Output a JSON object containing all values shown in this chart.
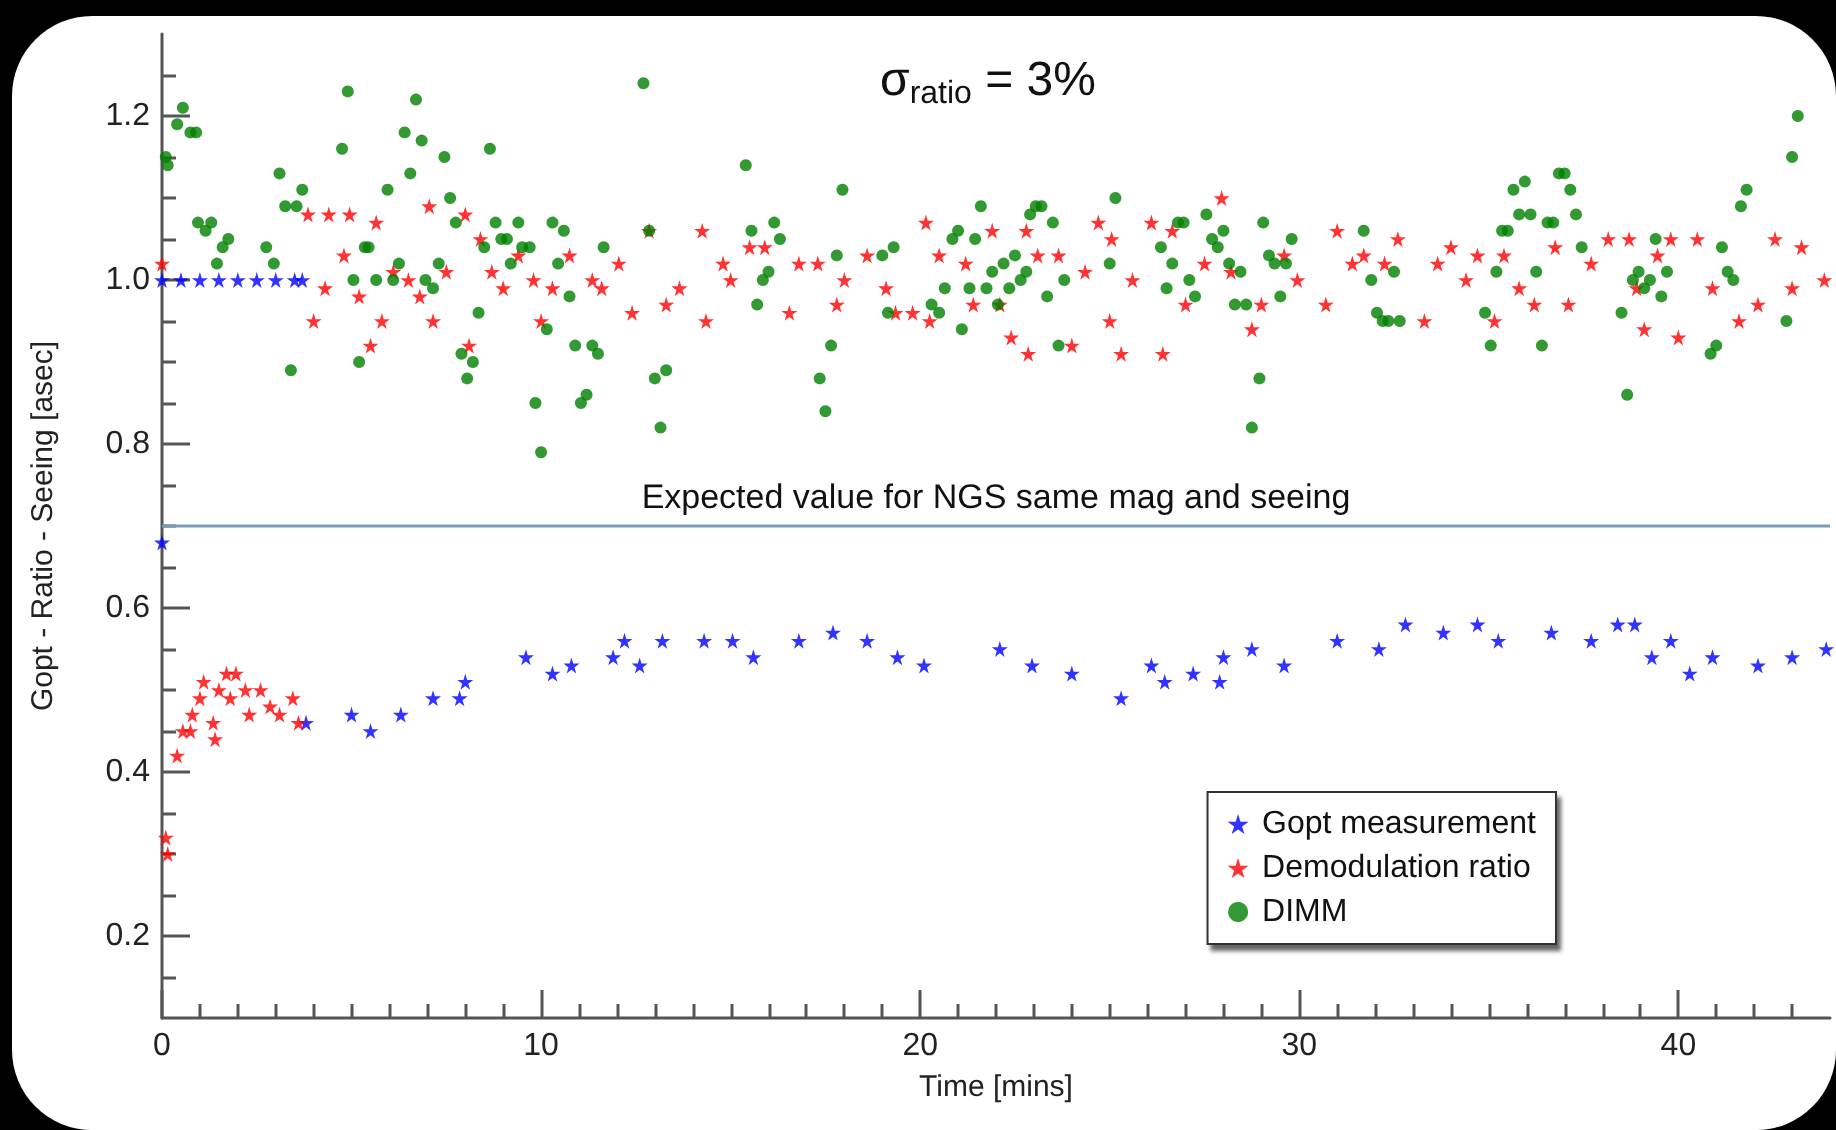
{
  "chart_data": {
    "type": "scatter",
    "xlabel": "Time [mins]",
    "ylabel": "Gopt - Ratio - Seeing [asec]",
    "annotations": [
      "σ$_{ratio}$ = 3%"
    ],
    "xlim": [
      0,
      44
    ],
    "xticks": [
      0,
      {
        "value": 1,
        "label": null
      },
      {
        "value": 2,
        "label": null
      },
      {
        "value": 3,
        "label": null
      },
      {
        "value": 4,
        "label": null
      },
      {
        "value": 5,
        "label": null
      },
      {
        "value": 6,
        "label": null
      },
      {
        "value": 7,
        "label": null
      },
      {
        "value": 8,
        "label": null
      },
      {
        "value": 9,
        "label": null
      },
      10,
      {
        "value": 11,
        "label": null
      },
      {
        "value": 12,
        "label": null
      },
      {
        "value": 13,
        "label": null
      },
      {
        "value": 14,
        "label": null
      },
      {
        "value": 15,
        "label": null
      },
      {
        "value": 16,
        "label": null
      },
      {
        "value": 17,
        "label": null
      },
      {
        "value": 18,
        "label": null
      },
      {
        "value": 19,
        "label": null
      },
      20,
      {
        "value": 21,
        "label": null
      },
      {
        "value": 22,
        "label": null
      },
      {
        "value": 23,
        "label": null
      },
      {
        "value": 24,
        "label": null
      },
      {
        "value": 25,
        "label": null
      },
      {
        "value": 26,
        "label": null
      },
      {
        "value": 27,
        "label": null
      },
      {
        "value": 28,
        "label": null
      },
      {
        "value": 29,
        "label": null
      },
      30,
      {
        "value": 31,
        "label": null
      },
      {
        "value": 32,
        "label": null
      },
      {
        "value": 33,
        "label": null
      },
      {
        "value": 34,
        "label": null
      },
      {
        "value": 35,
        "label": null
      },
      {
        "value": 36,
        "label": null
      },
      {
        "value": 37,
        "label": null
      },
      {
        "value": 38,
        "label": null
      },
      {
        "value": 39,
        "label": null
      },
      40,
      {
        "value": 41,
        "label": null
      },
      {
        "value": 42,
        "label": null
      },
      {
        "value": 43,
        "label": null
      }
    ],
    "ylim": [
      0.1,
      1.3
    ],
    "yticks": [
      {
        "value": 0.15,
        "label": null
      },
      {
        "value": 0.2,
        "label": "0.2"
      },
      {
        "value": 0.25,
        "label": null
      },
      {
        "value": 0.3,
        "label": null
      },
      {
        "value": 0.35,
        "label": null
      },
      {
        "value": 0.4,
        "label": "0.4"
      },
      {
        "value": 0.45,
        "label": null
      },
      {
        "value": 0.5,
        "label": null
      },
      {
        "value": 0.55,
        "label": null
      },
      {
        "value": 0.6,
        "label": "0.6"
      },
      {
        "value": 0.65,
        "label": null
      },
      {
        "value": 0.7,
        "label": null
      },
      {
        "value": 0.75,
        "label": null
      },
      {
        "value": 0.8,
        "label": "0.8"
      },
      {
        "value": 0.85,
        "label": null
      },
      {
        "value": 0.9,
        "label": null
      },
      {
        "value": 0.95,
        "label": null
      },
      {
        "value": 1.0,
        "label": "1.0"
      },
      {
        "value": 1.05,
        "label": null
      },
      {
        "value": 1.1,
        "label": null
      },
      {
        "value": 1.15,
        "label": null
      },
      {
        "value": 1.2,
        "label": "1.2"
      },
      {
        "value": 1.25,
        "label": null
      }
    ],
    "grid": false,
    "legend": "bottom right",
    "ref_lines": [
      {
        "axis": "y",
        "value": 0.7,
        "label": "Expected value for NGS same mag and seeing",
        "color": "#7a9cb8"
      }
    ],
    "series": [
      {
        "name": "Gopt measurement",
        "color": "#0000ff",
        "marker": "star",
        "x": [
          0,
          0,
          0.5,
          1,
          1.5,
          2,
          2.5,
          3,
          3.5,
          3.7,
          3.8,
          5.0,
          5.5,
          6.3,
          7.15,
          7.85,
          8.0,
          9.6,
          10.3,
          10.8,
          11.9,
          12.2,
          12.6,
          13.2,
          14.3,
          15.05,
          15.6,
          16.8,
          17.7,
          18.6,
          19.4,
          20.1,
          22.1,
          22.95,
          24.0,
          25.3,
          26.1,
          26.45,
          27.2,
          27.9,
          28.0,
          28.75,
          29.6,
          31.0,
          32.1,
          32.8,
          33.8,
          34.7,
          35.25,
          36.65,
          37.7,
          38.4,
          38.85,
          39.3,
          39.8,
          40.3,
          40.9,
          42.1,
          43.0,
          43.9
        ],
        "values": [
          0.68,
          1,
          1,
          1,
          1,
          1,
          1,
          1,
          1,
          1,
          0.46,
          0.47,
          0.45,
          0.47,
          0.49,
          0.49,
          0.51,
          0.54,
          0.52,
          0.53,
          0.54,
          0.56,
          0.53,
          0.56,
          0.56,
          0.56,
          0.54,
          0.56,
          0.57,
          0.56,
          0.54,
          0.53,
          0.55,
          0.53,
          0.52,
          0.49,
          0.53,
          0.51,
          0.52,
          0.51,
          0.54,
          0.55,
          0.53,
          0.56,
          0.55,
          0.58,
          0.57,
          0.58,
          0.56,
          0.57,
          0.56,
          0.58,
          0.58,
          0.54,
          0.56,
          0.52,
          0.54,
          0.53,
          0.54,
          0.55
        ]
      },
      {
        "name": "Demodulation ratio",
        "color": "#ff0000",
        "marker": "star",
        "x": [
          0.1,
          0.15,
          0.4,
          0.55,
          0.75,
          0.8,
          1.0,
          1.1,
          1.35,
          1.4,
          1.5,
          1.7,
          1.8,
          1.95,
          2.2,
          2.3,
          2.6,
          2.85,
          3.1,
          3.45,
          3.6,
          0,
          3.85,
          4.0,
          4.3,
          4.4,
          4.8,
          4.95,
          5.2,
          5.5,
          5.65,
          5.8,
          6.1,
          6.5,
          6.8,
          7.05,
          7.15,
          7.5,
          8.0,
          8.1,
          8.4,
          8.7,
          9.0,
          9.4,
          9.8,
          10.0,
          10.3,
          10.75,
          11.35,
          11.6,
          12.05,
          12.4,
          12.85,
          13.3,
          13.65,
          14.25,
          14.35,
          14.8,
          15.0,
          15.5,
          15.9,
          16.55,
          16.8,
          17.3,
          17.8,
          18.0,
          18.6,
          19.1,
          19.35,
          19.8,
          20.15,
          20.25,
          20.5,
          21.2,
          21.4,
          21.9,
          22.1,
          22.4,
          22.8,
          22.85,
          23.1,
          23.65,
          24.0,
          24.35,
          24.7,
          25.0,
          25.05,
          25.3,
          25.6,
          26.1,
          26.4,
          26.65,
          27.0,
          27.5,
          27.95,
          28.2,
          28.75,
          29.0,
          29.6,
          29.95,
          30.7,
          31.0,
          31.4,
          31.7,
          32.25,
          32.6,
          33.3,
          33.65,
          34.0,
          34.4,
          34.7,
          35.15,
          35.4,
          35.8,
          36.2,
          36.75,
          37.1,
          37.7,
          38.15,
          38.7,
          38.9,
          39.1,
          39.45,
          39.8,
          40.0,
          40.5,
          40.9,
          41.6,
          42.1,
          42.55,
          43.0,
          43.25,
          43.85
        ],
        "values": [
          0.32,
          0.3,
          0.42,
          0.45,
          0.45,
          0.47,
          0.49,
          0.51,
          0.46,
          0.44,
          0.5,
          0.52,
          0.49,
          0.52,
          0.5,
          0.47,
          0.5,
          0.48,
          0.47,
          0.49,
          0.46,
          1.02,
          1.08,
          0.95,
          0.99,
          1.08,
          1.03,
          1.08,
          0.98,
          0.92,
          1.07,
          0.95,
          1.01,
          1.0,
          0.98,
          1.09,
          0.95,
          1.01,
          1.08,
          0.92,
          1.05,
          1.01,
          0.99,
          1.03,
          1.0,
          0.95,
          0.99,
          1.03,
          1.0,
          0.99,
          1.02,
          0.96,
          1.06,
          0.97,
          0.99,
          1.06,
          0.95,
          1.02,
          1.0,
          1.04,
          1.04,
          0.96,
          1.02,
          1.02,
          0.97,
          1.0,
          1.03,
          0.99,
          0.96,
          0.96,
          1.07,
          0.95,
          1.03,
          1.02,
          0.97,
          1.06,
          0.97,
          0.93,
          1.06,
          0.91,
          1.03,
          1.03,
          0.92,
          1.01,
          1.07,
          0.95,
          1.05,
          0.91,
          1.0,
          1.07,
          0.91,
          1.06,
          0.97,
          1.02,
          1.1,
          1.01,
          0.94,
          0.97,
          1.03,
          1.0,
          0.97,
          1.06,
          1.02,
          1.03,
          1.02,
          1.05,
          0.95,
          1.02,
          1.04,
          1.0,
          1.03,
          0.95,
          1.03,
          0.99,
          0.97,
          1.04,
          0.97,
          1.02,
          1.05,
          1.05,
          0.99,
          0.94,
          1.03,
          1.05,
          0.93,
          1.05,
          0.99,
          0.95,
          0.97,
          1.05,
          0.99,
          1.04,
          1.0
        ]
      },
      {
        "name": "DIMM",
        "color": "#008000",
        "marker": "circle",
        "x": [
          0.1,
          0.15,
          0.4,
          0.55,
          0.75,
          0.9,
          0.95,
          1.15,
          1.3,
          1.45,
          1.6,
          1.75,
          2.75,
          2.95,
          3.1,
          3.25,
          3.4,
          3.55,
          3.7,
          4.75,
          4.9,
          5.05,
          5.2,
          5.35,
          5.45,
          5.65,
          5.95,
          6.1,
          6.25,
          6.4,
          6.55,
          6.7,
          6.85,
          6.95,
          7.15,
          7.3,
          7.45,
          7.6,
          7.75,
          7.9,
          8.05,
          8.2,
          8.35,
          8.5,
          8.65,
          8.8,
          8.95,
          9.1,
          9.2,
          9.4,
          9.5,
          9.7,
          9.85,
          10.0,
          10.15,
          10.3,
          10.45,
          10.6,
          10.75,
          10.9,
          11.05,
          11.2,
          11.35,
          11.5,
          11.65,
          12.7,
          12.85,
          13.0,
          13.15,
          13.3,
          15.4,
          15.55,
          15.7,
          15.85,
          16.0,
          16.15,
          16.3,
          17.35,
          17.5,
          17.65,
          17.8,
          17.95,
          19.0,
          19.15,
          19.3,
          20.3,
          20.5,
          20.65,
          20.85,
          21.0,
          21.1,
          21.3,
          21.45,
          21.6,
          21.75,
          21.9,
          22.05,
          22.2,
          22.35,
          22.5,
          22.65,
          22.8,
          22.9,
          23.05,
          23.2,
          23.35,
          23.5,
          23.65,
          23.8,
          25.0,
          25.15,
          26.35,
          26.5,
          26.65,
          26.8,
          26.95,
          27.1,
          27.25,
          27.55,
          27.7,
          27.85,
          28.0,
          28.15,
          28.3,
          28.45,
          28.6,
          28.75,
          28.95,
          29.05,
          29.2,
          29.35,
          29.5,
          29.65,
          29.8,
          31.7,
          31.9,
          32.05,
          32.2,
          32.35,
          32.5,
          32.65,
          34.9,
          35.05,
          35.2,
          35.35,
          35.5,
          35.65,
          35.8,
          35.95,
          36.1,
          36.25,
          36.4,
          36.55,
          36.7,
          36.85,
          37.0,
          37.15,
          37.3,
          37.45,
          38.5,
          38.65,
          38.8,
          38.95,
          39.1,
          39.25,
          39.4,
          39.55,
          39.7,
          40.85,
          41.0,
          41.15,
          41.3,
          41.45,
          41.65,
          41.8,
          42.85,
          43.0,
          43.15
        ],
        "values": [
          1.15,
          1.14,
          1.19,
          1.21,
          1.18,
          1.18,
          1.07,
          1.06,
          1.07,
          1.02,
          1.04,
          1.05,
          1.04,
          1.02,
          1.13,
          1.09,
          0.89,
          1.09,
          1.11,
          1.16,
          1.23,
          1.0,
          0.9,
          1.04,
          1.04,
          1.0,
          1.11,
          1.0,
          1.02,
          1.18,
          1.13,
          1.22,
          1.17,
          1.0,
          0.99,
          1.02,
          1.15,
          1.1,
          1.07,
          0.91,
          0.88,
          0.9,
          0.96,
          1.04,
          1.16,
          1.07,
          1.05,
          1.05,
          1.02,
          1.07,
          1.04,
          1.04,
          0.85,
          0.79,
          0.94,
          1.07,
          1.02,
          1.06,
          0.98,
          0.92,
          0.85,
          0.86,
          0.92,
          0.91,
          1.04,
          1.24,
          1.06,
          0.88,
          0.82,
          0.89,
          1.14,
          1.06,
          0.97,
          1.0,
          1.01,
          1.07,
          1.05,
          0.88,
          0.84,
          0.92,
          1.03,
          1.11,
          1.03,
          0.96,
          1.04,
          0.97,
          0.96,
          0.99,
          1.05,
          1.06,
          0.94,
          0.99,
          1.05,
          1.09,
          0.99,
          1.01,
          0.97,
          1.02,
          0.99,
          1.03,
          1.0,
          1.01,
          1.08,
          1.09,
          1.09,
          0.98,
          1.07,
          0.92,
          1.0,
          1.02,
          1.1,
          1.04,
          0.99,
          1.02,
          1.07,
          1.07,
          1.0,
          0.98,
          1.08,
          1.05,
          1.04,
          1.06,
          1.02,
          0.97,
          1.01,
          0.97,
          0.82,
          0.88,
          1.07,
          1.03,
          1.02,
          0.98,
          1.02,
          1.05,
          1.06,
          1.0,
          0.96,
          0.95,
          0.95,
          1.01,
          0.95,
          0.96,
          0.92,
          1.01,
          1.06,
          1.06,
          1.11,
          1.08,
          1.12,
          1.08,
          1.01,
          0.92,
          1.07,
          1.07,
          1.13,
          1.13,
          1.11,
          1.08,
          1.04,
          0.96,
          0.86,
          1.0,
          1.01,
          0.99,
          1.0,
          1.05,
          0.98,
          1.01,
          0.91,
          0.92,
          1.04,
          1.01,
          1.0,
          1.09,
          1.11,
          0.95,
          1.15,
          1.2
        ]
      }
    ]
  }
}
